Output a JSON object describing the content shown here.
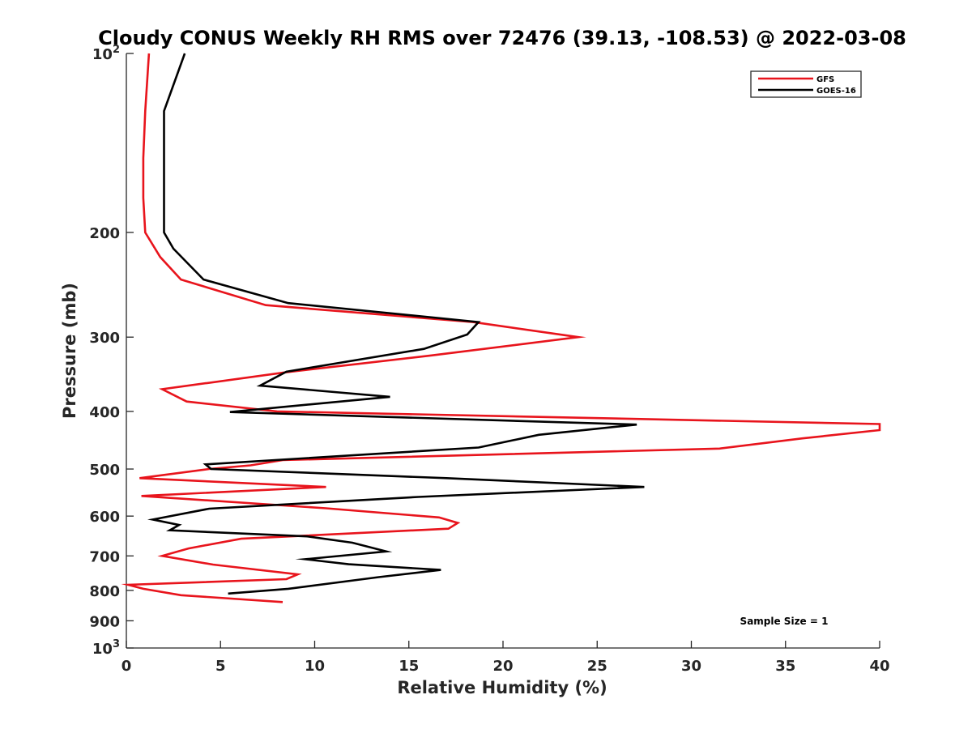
{
  "chart_data": {
    "type": "line",
    "title": "Cloudy CONUS Weekly RH RMS over 72476 (39.13, -108.53) @ 2022-03-08",
    "xlabel": "Relative Humidity (%)",
    "ylabel": "Pressure (mb)",
    "xlim": [
      0,
      40
    ],
    "ylim": [
      100,
      1000
    ],
    "y_scale": "log",
    "y_reversed": true,
    "grid": false,
    "legend_position": "top-right",
    "x_ticks": [
      0,
      5,
      10,
      15,
      20,
      25,
      30,
      35,
      40
    ],
    "x_tick_labels": [
      "0",
      "5",
      "10",
      "15",
      "20",
      "25",
      "30",
      "35",
      "40"
    ],
    "y_ticks": [
      100,
      200,
      300,
      400,
      500,
      600,
      700,
      800,
      900,
      1000
    ],
    "y_tick_labels": [
      "10^2",
      "200",
      "300",
      "400",
      "500",
      "600",
      "700",
      "800",
      "900",
      "10^3"
    ],
    "annotation": "Sample Size = 1",
    "series": [
      {
        "name": "GFS",
        "color": "#e8141c",
        "points": [
          [
            1.2,
            100
          ],
          [
            1.0,
            125
          ],
          [
            0.9,
            150
          ],
          [
            0.9,
            175
          ],
          [
            1.0,
            200
          ],
          [
            1.8,
            220
          ],
          [
            2.9,
            240
          ],
          [
            7.4,
            265
          ],
          [
            18.4,
            283
          ],
          [
            24.0,
            300
          ],
          [
            16.2,
            322
          ],
          [
            8.4,
            344
          ],
          [
            1.9,
            367
          ],
          [
            3.2,
            385
          ],
          [
            8.0,
            400
          ],
          [
            40.0,
            420
          ],
          [
            40.0,
            430
          ],
          [
            35.9,
            444
          ],
          [
            31.5,
            462
          ],
          [
            8.3,
            483
          ],
          [
            6.6,
            493
          ],
          [
            4.4,
            500
          ],
          [
            0.7,
            518
          ],
          [
            10.6,
            536
          ],
          [
            0.8,
            555
          ],
          [
            10.6,
            582
          ],
          [
            16.6,
            603
          ],
          [
            17.6,
            616
          ],
          [
            17.1,
            630
          ],
          [
            6.1,
            655
          ],
          [
            3.3,
            680
          ],
          [
            1.9,
            700
          ],
          [
            4.6,
            724
          ],
          [
            9.1,
            752
          ],
          [
            8.5,
            766
          ],
          [
            0.1,
            783
          ],
          [
            0.9,
            795
          ],
          [
            2.9,
            815
          ],
          [
            8.3,
            837
          ]
        ]
      },
      {
        "name": "GOES-16",
        "color": "#000000",
        "points": [
          [
            3.1,
            100
          ],
          [
            2.0,
            125
          ],
          [
            2.0,
            150
          ],
          [
            2.0,
            175
          ],
          [
            2.0,
            200
          ],
          [
            2.5,
            213
          ],
          [
            4.1,
            240
          ],
          [
            8.6,
            263
          ],
          [
            18.7,
            283
          ],
          [
            18.1,
            297
          ],
          [
            15.8,
            314
          ],
          [
            8.5,
            343
          ],
          [
            7.1,
            362
          ],
          [
            14.0,
            378
          ],
          [
            5.5,
            401
          ],
          [
            27.1,
            421
          ],
          [
            21.9,
            438
          ],
          [
            18.7,
            460
          ],
          [
            4.2,
            491
          ],
          [
            4.5,
            500
          ],
          [
            17.0,
            518
          ],
          [
            27.5,
            536
          ],
          [
            15.5,
            557
          ],
          [
            4.4,
            583
          ],
          [
            1.4,
            608
          ],
          [
            2.8,
            621
          ],
          [
            2.3,
            634
          ],
          [
            9.6,
            649
          ],
          [
            12.0,
            665
          ],
          [
            13.8,
            688
          ],
          [
            9.5,
            709
          ],
          [
            11.8,
            723
          ],
          [
            16.7,
            739
          ],
          [
            13.4,
            760
          ],
          [
            8.6,
            795
          ],
          [
            5.4,
            810
          ]
        ]
      }
    ]
  }
}
